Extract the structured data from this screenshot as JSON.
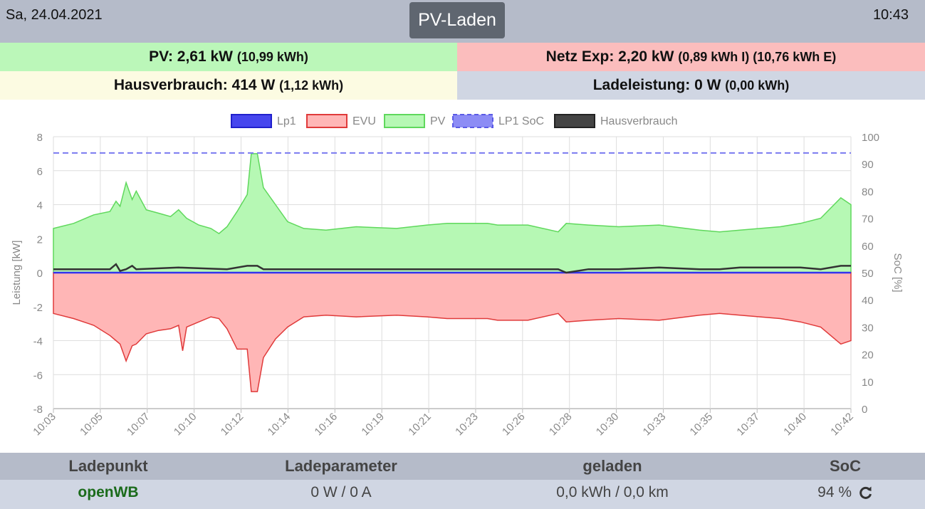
{
  "header": {
    "date": "Sa, 24.04.2021",
    "title": "PV-Laden",
    "time": "10:43"
  },
  "summary": {
    "pv": {
      "main": "PV: 2,61 kW",
      "sub": "(10,99 kWh)"
    },
    "grid": {
      "main": "Netz Exp: 2,20 kW",
      "sub": "(0,89 kWh I) (10,76 kWh E)"
    },
    "house": {
      "main": "Hausverbrauch: 414 W",
      "sub": "(1,12 kWh)"
    },
    "charge": {
      "main": "Ladeleistung: 0 W",
      "sub": "(0,00 kWh)"
    }
  },
  "colors": {
    "lp1": "#3333ee",
    "evu_fill": "#ffb6b6",
    "evu_line": "#e03a3a",
    "pv_fill": "#b6f8b4",
    "pv_line": "#5fd85c",
    "soc": "#7a7af0",
    "house": "#333333"
  },
  "chart_data": {
    "type": "area",
    "legend_position": "top",
    "grid": true,
    "legend": [
      "Lp1",
      "EVU",
      "PV",
      "LP1 SoC",
      "Hausverbrauch"
    ],
    "ylabel": "Leistung [kW]",
    "y2label": "SoC [%]",
    "ylim": [
      -8,
      8
    ],
    "y2lim": [
      0,
      100
    ],
    "yticks": [
      "8",
      "6",
      "4",
      "2",
      "0",
      "-2",
      "-4",
      "-6",
      "-8"
    ],
    "y2ticks": [
      "100",
      "90",
      "80",
      "70",
      "60",
      "50",
      "40",
      "30",
      "20",
      "10",
      "0"
    ],
    "xticks": [
      "10:03",
      "10:05",
      "10:07",
      "10:10",
      "10:12",
      "10:14",
      "10:16",
      "10:19",
      "10:21",
      "10:23",
      "10:26",
      "10:28",
      "10:30",
      "10:33",
      "10:35",
      "10:37",
      "10:40",
      "10:42"
    ],
    "xlim_minutes": [
      0,
      39.5
    ],
    "series": [
      {
        "name": "PV",
        "points": [
          [
            0,
            2.6
          ],
          [
            1,
            2.9
          ],
          [
            2,
            3.4
          ],
          [
            2.8,
            3.6
          ],
          [
            3.1,
            4.2
          ],
          [
            3.3,
            3.9
          ],
          [
            3.6,
            5.3
          ],
          [
            3.9,
            4.3
          ],
          [
            4.1,
            4.8
          ],
          [
            4.6,
            3.7
          ],
          [
            5.2,
            3.5
          ],
          [
            5.8,
            3.3
          ],
          [
            6.2,
            3.7
          ],
          [
            6.6,
            3.2
          ],
          [
            7.2,
            2.8
          ],
          [
            7.8,
            2.6
          ],
          [
            8.2,
            2.3
          ],
          [
            8.6,
            2.7
          ],
          [
            9.1,
            3.6
          ],
          [
            9.6,
            4.6
          ],
          [
            9.8,
            7.0
          ],
          [
            10.1,
            7.0
          ],
          [
            10.4,
            5.0
          ],
          [
            11.0,
            4.0
          ],
          [
            11.6,
            3.0
          ],
          [
            12.4,
            2.6
          ],
          [
            13.5,
            2.5
          ],
          [
            15,
            2.7
          ],
          [
            17,
            2.6
          ],
          [
            18.5,
            2.8
          ],
          [
            19.5,
            2.9
          ],
          [
            21.5,
            2.9
          ],
          [
            22,
            2.8
          ],
          [
            23.5,
            2.8
          ],
          [
            25,
            2.4
          ],
          [
            25.4,
            2.9
          ],
          [
            26.5,
            2.8
          ],
          [
            28,
            2.7
          ],
          [
            30,
            2.8
          ],
          [
            32,
            2.5
          ],
          [
            33,
            2.4
          ],
          [
            34,
            2.5
          ],
          [
            36,
            2.7
          ],
          [
            37,
            2.9
          ],
          [
            38,
            3.2
          ],
          [
            39,
            4.4
          ],
          [
            39.5,
            4.0
          ]
        ]
      },
      {
        "name": "EVU",
        "points": [
          [
            0,
            -2.4
          ],
          [
            1,
            -2.7
          ],
          [
            2,
            -3.1
          ],
          [
            2.8,
            -3.7
          ],
          [
            3.1,
            -4.0
          ],
          [
            3.3,
            -4.2
          ],
          [
            3.6,
            -5.2
          ],
          [
            3.9,
            -4.3
          ],
          [
            4.1,
            -4.2
          ],
          [
            4.6,
            -3.6
          ],
          [
            5.2,
            -3.4
          ],
          [
            5.8,
            -3.3
          ],
          [
            6.2,
            -3.1
          ],
          [
            6.4,
            -4.6
          ],
          [
            6.6,
            -3.2
          ],
          [
            7.2,
            -2.9
          ],
          [
            7.8,
            -2.6
          ],
          [
            8.2,
            -2.7
          ],
          [
            8.6,
            -3.3
          ],
          [
            9.1,
            -4.5
          ],
          [
            9.6,
            -4.5
          ],
          [
            9.8,
            -7.0
          ],
          [
            10.1,
            -7.0
          ],
          [
            10.4,
            -5.0
          ],
          [
            11.0,
            -3.9
          ],
          [
            11.6,
            -3.2
          ],
          [
            12.4,
            -2.6
          ],
          [
            13.5,
            -2.5
          ],
          [
            15,
            -2.6
          ],
          [
            17,
            -2.5
          ],
          [
            18.5,
            -2.6
          ],
          [
            19.5,
            -2.7
          ],
          [
            21.5,
            -2.7
          ],
          [
            22,
            -2.8
          ],
          [
            23.5,
            -2.8
          ],
          [
            25,
            -2.4
          ],
          [
            25.4,
            -2.9
          ],
          [
            26.5,
            -2.8
          ],
          [
            28,
            -2.7
          ],
          [
            30,
            -2.8
          ],
          [
            32,
            -2.5
          ],
          [
            33,
            -2.4
          ],
          [
            34,
            -2.5
          ],
          [
            36,
            -2.7
          ],
          [
            37,
            -2.9
          ],
          [
            38,
            -3.2
          ],
          [
            39,
            -4.2
          ],
          [
            39.5,
            -4.0
          ]
        ]
      },
      {
        "name": "Hausverbrauch",
        "points": [
          [
            0,
            0.2
          ],
          [
            2.8,
            0.2
          ],
          [
            3.1,
            0.5
          ],
          [
            3.3,
            0.1
          ],
          [
            3.6,
            0.2
          ],
          [
            3.9,
            0.4
          ],
          [
            4.1,
            0.2
          ],
          [
            6.2,
            0.3
          ],
          [
            8.6,
            0.2
          ],
          [
            9.6,
            0.4
          ],
          [
            10.1,
            0.4
          ],
          [
            10.4,
            0.2
          ],
          [
            11.6,
            0.2
          ],
          [
            19.5,
            0.2
          ],
          [
            21.5,
            0.2
          ],
          [
            22,
            0.2
          ],
          [
            23.5,
            0.2
          ],
          [
            25,
            0.2
          ],
          [
            25.4,
            0.0
          ],
          [
            26.5,
            0.2
          ],
          [
            28,
            0.2
          ],
          [
            30,
            0.3
          ],
          [
            32,
            0.2
          ],
          [
            33,
            0.2
          ],
          [
            34,
            0.3
          ],
          [
            36,
            0.3
          ],
          [
            37,
            0.3
          ],
          [
            38,
            0.2
          ],
          [
            39,
            0.4
          ],
          [
            39.5,
            0.4
          ]
        ]
      },
      {
        "name": "Lp1",
        "points": [
          [
            0,
            0
          ],
          [
            39.5,
            0
          ]
        ]
      },
      {
        "name": "LP1 SoC",
        "points": [
          [
            0,
            94
          ],
          [
            39.5,
            94
          ]
        ]
      }
    ]
  },
  "ladepunkt_table": {
    "headers": [
      "Ladepunkt",
      "Ladeparameter",
      "geladen",
      "SoC"
    ],
    "row": {
      "name": "openWB",
      "parameters": "0 W / 0 A",
      "charged": "0,0 kWh / 0,0 km",
      "soc": "94 %"
    }
  }
}
